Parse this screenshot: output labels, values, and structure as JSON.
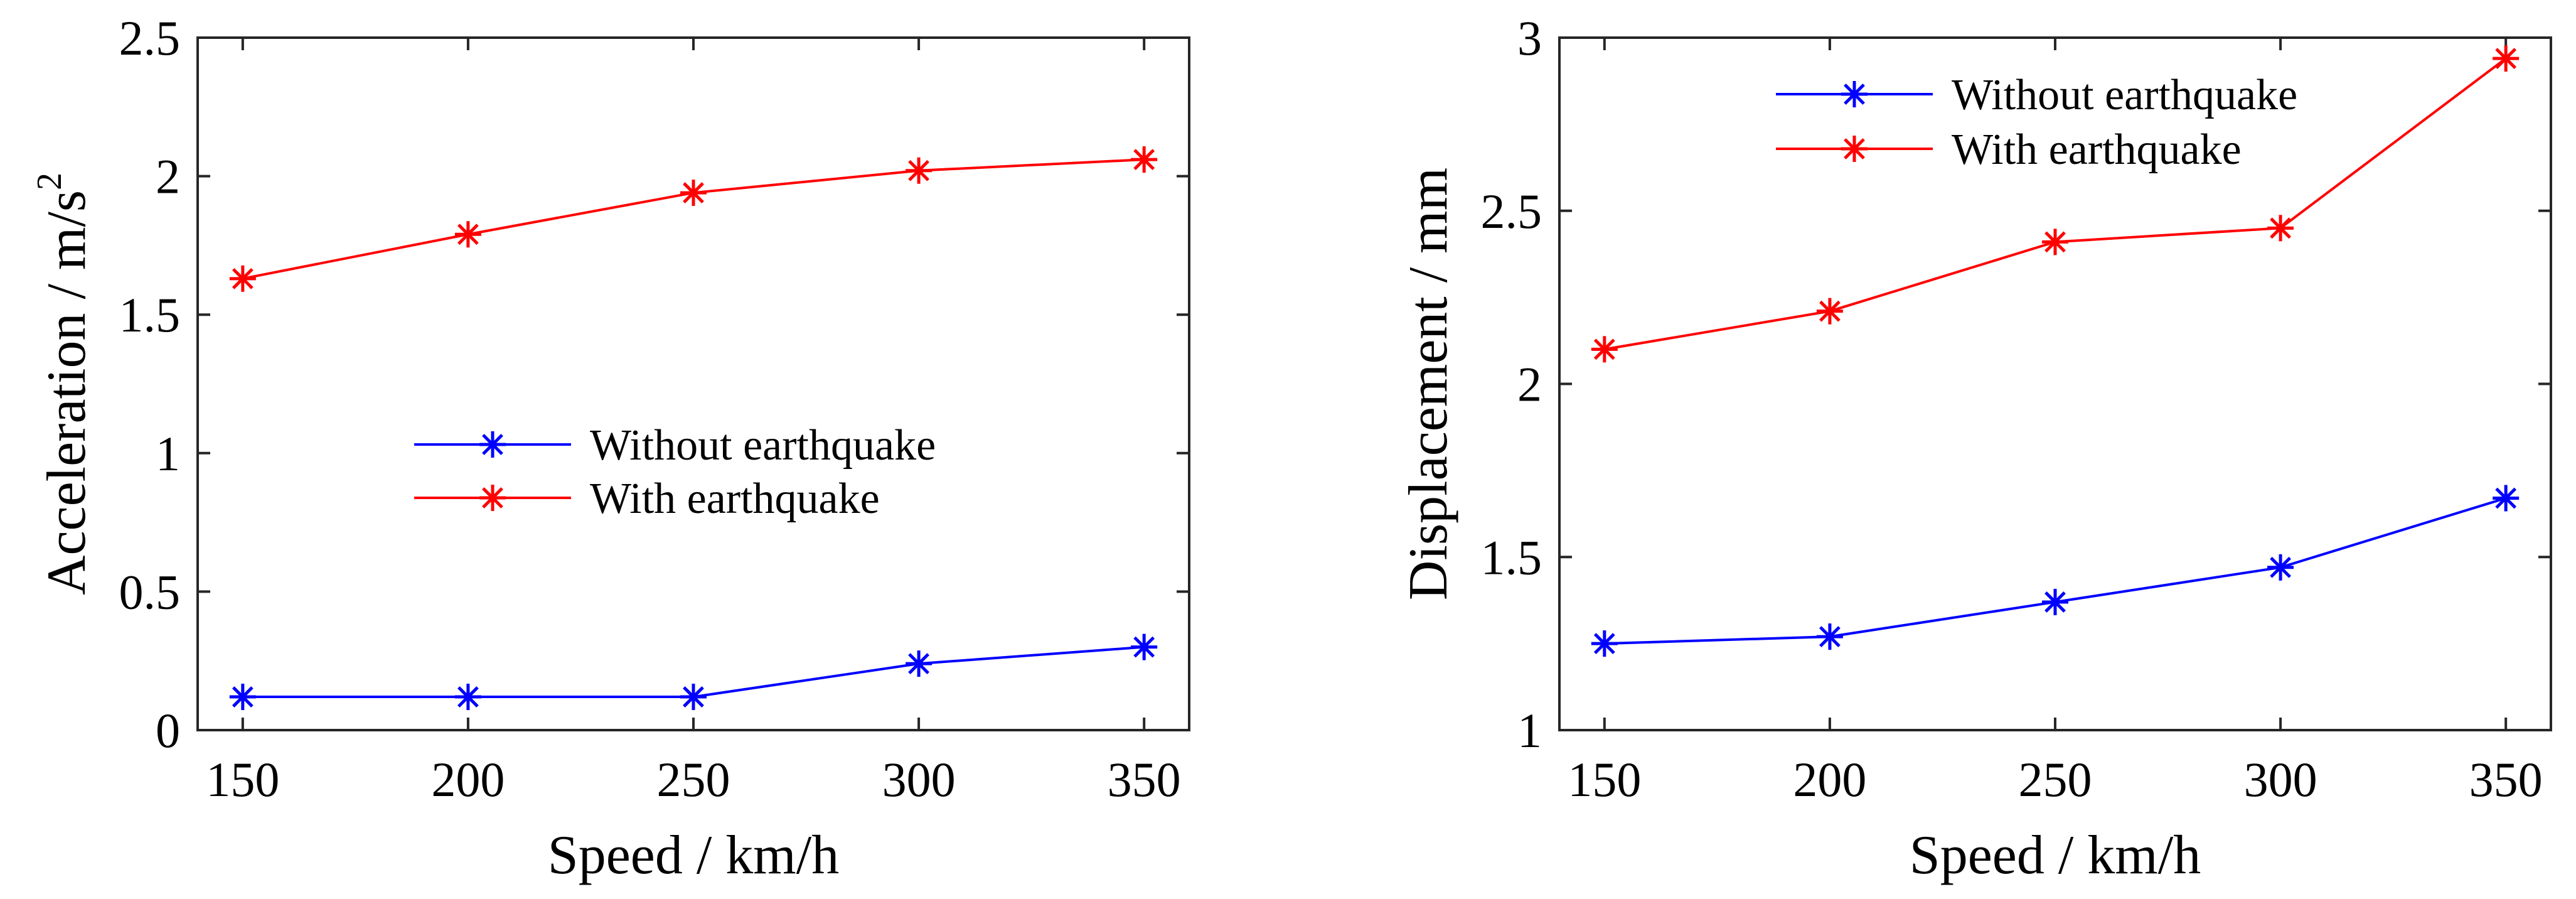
{
  "chart_data": [
    {
      "type": "line",
      "title": "",
      "xlabel": "Speed / km/h",
      "ylabel": {
        "text": "Acceleration / m/s",
        "superscript": "2"
      },
      "x": [
        150,
        200,
        250,
        300,
        350
      ],
      "xticks": [
        "150",
        "200",
        "250",
        "300",
        "350"
      ],
      "yticks": [
        "0",
        "0.5",
        "1",
        "1.5",
        "2",
        "2.5"
      ],
      "xlim": [
        140,
        360
      ],
      "ylim": [
        0,
        2.5
      ],
      "grid": false,
      "legend_position": "center",
      "series": [
        {
          "name": "Without earthquake",
          "color": "#0000ff",
          "marker": "asterisk",
          "values": [
            0.12,
            0.12,
            0.12,
            0.24,
            0.3
          ]
        },
        {
          "name": "With earthquake",
          "color": "#ff0000",
          "marker": "asterisk",
          "values": [
            1.63,
            1.79,
            1.94,
            2.02,
            2.06
          ]
        }
      ]
    },
    {
      "type": "line",
      "title": "",
      "xlabel": "Speed / km/h",
      "ylabel": {
        "text": "Displacement / mm",
        "superscript": ""
      },
      "x": [
        150,
        200,
        250,
        300,
        350
      ],
      "xticks": [
        "150",
        "200",
        "250",
        "300",
        "350"
      ],
      "yticks": [
        "1",
        "1.5",
        "2",
        "2.5",
        "3"
      ],
      "xlim": [
        140,
        360
      ],
      "ylim": [
        1,
        3
      ],
      "grid": false,
      "legend_position": "top-center",
      "series": [
        {
          "name": "Without earthquake",
          "color": "#0000ff",
          "marker": "asterisk",
          "values": [
            1.25,
            1.27,
            1.37,
            1.47,
            1.67
          ]
        },
        {
          "name": "With earthquake",
          "color": "#ff0000",
          "marker": "asterisk",
          "values": [
            2.1,
            2.21,
            2.41,
            2.45,
            2.94
          ]
        }
      ]
    }
  ]
}
